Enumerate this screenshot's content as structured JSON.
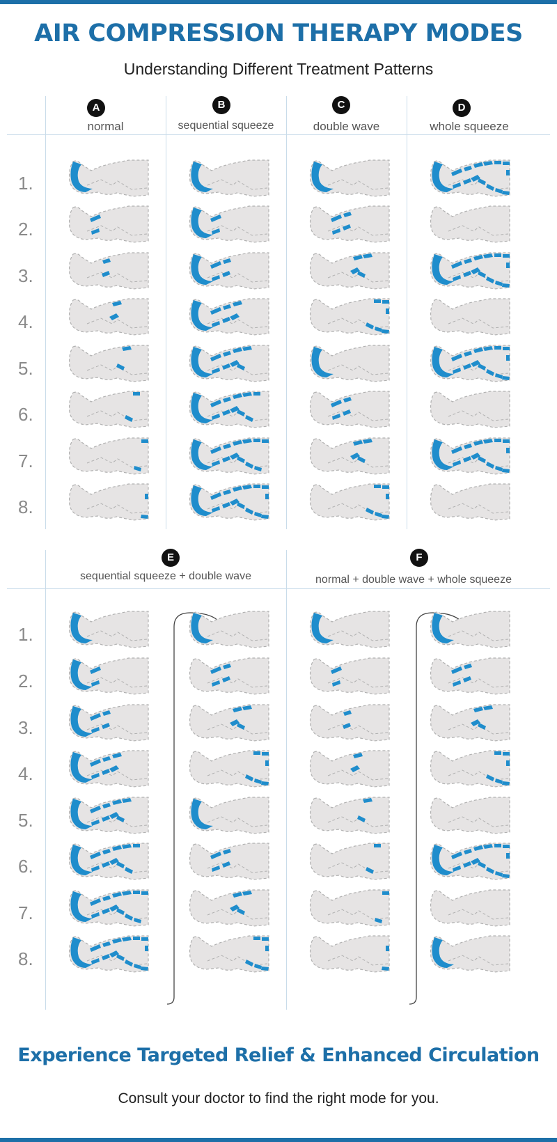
{
  "header": {
    "title": "AIR COMPRESSION THERAPY MODES",
    "subtitle": "Understanding Different Treatment Patterns"
  },
  "top_section": {
    "modes": [
      {
        "badge": "A",
        "label": "normal"
      },
      {
        "badge": "B",
        "label": "sequential squeeze"
      },
      {
        "badge": "C",
        "label": "double wave"
      },
      {
        "badge": "D",
        "label": "whole squeeze"
      }
    ],
    "rows": [
      "1.",
      "2.",
      "3.",
      "4.",
      "5.",
      "6.",
      "7.",
      "8."
    ]
  },
  "bottom_section": {
    "modes": [
      {
        "badge": "E",
        "label": "sequential squeeze + double wave"
      },
      {
        "badge": "F",
        "label": "normal + double wave + whole squeeze"
      }
    ],
    "rows": [
      "1.",
      "2.",
      "3.",
      "4.",
      "5.",
      "6.",
      "7.",
      "8."
    ]
  },
  "patterns": {
    "A": [
      [
        1
      ],
      [
        2
      ],
      [
        3
      ],
      [
        4
      ],
      [
        5
      ],
      [
        6
      ],
      [
        7
      ],
      [
        8
      ]
    ],
    "B": [
      [
        1
      ],
      [
        1,
        2
      ],
      [
        1,
        2,
        3
      ],
      [
        1,
        2,
        3,
        4
      ],
      [
        1,
        2,
        3,
        4,
        5
      ],
      [
        1,
        2,
        3,
        4,
        5,
        6
      ],
      [
        1,
        2,
        3,
        4,
        5,
        6,
        7
      ],
      [
        1,
        2,
        3,
        4,
        5,
        6,
        7,
        8
      ]
    ],
    "C": [
      [
        1
      ],
      [
        2,
        3
      ],
      [
        4,
        5
      ],
      [
        6,
        7,
        8
      ],
      [
        1
      ],
      [
        2,
        3
      ],
      [
        4,
        5
      ],
      [
        6,
        7,
        8
      ]
    ],
    "D": [
      [
        1,
        2,
        3,
        4,
        5,
        6,
        7,
        8
      ],
      [],
      [
        1,
        2,
        3,
        4,
        5,
        6,
        7,
        8
      ],
      [],
      [
        1,
        2,
        3,
        4,
        5,
        6,
        7,
        8
      ],
      [],
      [
        1,
        2,
        3,
        4,
        5,
        6,
        7,
        8
      ],
      []
    ],
    "E1": [
      [
        1
      ],
      [
        1,
        2
      ],
      [
        1,
        2,
        3
      ],
      [
        1,
        2,
        3,
        4
      ],
      [
        1,
        2,
        3,
        4,
        5
      ],
      [
        1,
        2,
        3,
        4,
        5,
        6
      ],
      [
        1,
        2,
        3,
        4,
        5,
        6,
        7
      ],
      [
        1,
        2,
        3,
        4,
        5,
        6,
        7,
        8
      ]
    ],
    "E2": [
      [
        1
      ],
      [
        2,
        3
      ],
      [
        4,
        5
      ],
      [
        6,
        7,
        8
      ],
      [
        1
      ],
      [
        2,
        3
      ],
      [
        4,
        5
      ],
      [
        6,
        7,
        8
      ]
    ],
    "F1": [
      [
        1
      ],
      [
        2
      ],
      [
        3
      ],
      [
        4
      ],
      [
        5
      ],
      [
        6
      ],
      [
        7
      ],
      [
        8
      ]
    ],
    "F2": [
      [
        1
      ],
      [
        2,
        3
      ],
      [
        4,
        5
      ],
      [
        6,
        7,
        8
      ],
      [],
      [
        1,
        2,
        3,
        4,
        5,
        6,
        7,
        8
      ],
      [],
      [
        1
      ]
    ]
  },
  "colors": {
    "accent": "#1d6fa8",
    "active_chamber": "#1f8dcc",
    "leg_fill": "#e6e4e4",
    "leg_outline": "#b0b0b0",
    "grid": "#c9dcea",
    "row_number": "#8a8a8a"
  },
  "footer": {
    "title": "Experience Targeted Relief & Enhanced Circulation",
    "subtitle": "Consult your doctor to find the right mode for you."
  }
}
